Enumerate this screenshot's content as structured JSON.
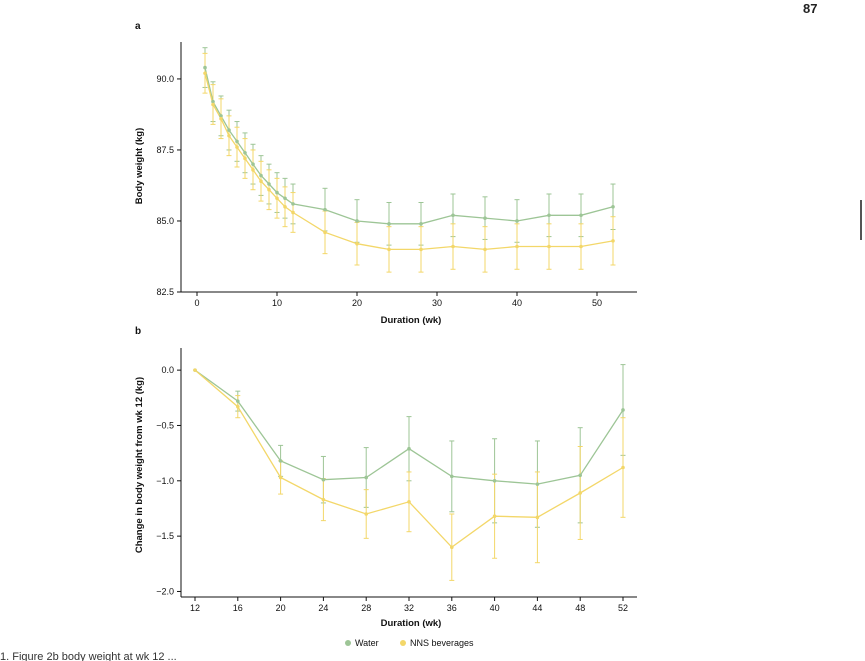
{
  "page": {
    "page_number": "87",
    "caption_fragment": "1. Figure 2b    body weight at wk 12 ..."
  },
  "colors": {
    "water": "#9dc596",
    "nns": "#f3d769",
    "axis": "#111111"
  },
  "legend": {
    "items": [
      {
        "label": "Water",
        "color": "#9dc596",
        "marker": "circle"
      },
      {
        "label": "NNS beverages",
        "color": "#f3d769",
        "marker": "circle"
      }
    ],
    "placement": "bottom-center"
  },
  "chart_data": [
    {
      "panel": "a",
      "type": "line",
      "xlabel": "Duration (wk)",
      "ylabel": "Body weight (kg)",
      "xlim": [
        -2,
        55
      ],
      "ylim": [
        82.5,
        91.3
      ],
      "xticks": [
        0,
        10,
        20,
        30,
        40,
        50
      ],
      "yticks": [
        82.5,
        85.0,
        87.5,
        90.0
      ],
      "ytick_labels": [
        "82.5",
        "85.0",
        "87.5",
        "90.0"
      ],
      "grid": false,
      "error_bars": true,
      "x": [
        1,
        2,
        3,
        4,
        5,
        6,
        7,
        8,
        9,
        10,
        11,
        12,
        16,
        20,
        24,
        28,
        32,
        36,
        40,
        44,
        48,
        52
      ],
      "series": [
        {
          "name": "Water",
          "color": "#9dc596",
          "values": [
            90.4,
            89.2,
            88.7,
            88.2,
            87.8,
            87.4,
            87.0,
            86.6,
            86.3,
            86.0,
            85.8,
            85.6,
            85.4,
            85.0,
            84.9,
            84.9,
            85.2,
            85.1,
            85.0,
            85.2,
            85.2,
            85.5
          ],
          "errors": [
            0.7,
            0.7,
            0.7,
            0.7,
            0.7,
            0.7,
            0.7,
            0.7,
            0.7,
            0.7,
            0.7,
            0.7,
            0.75,
            0.75,
            0.75,
            0.75,
            0.75,
            0.75,
            0.75,
            0.75,
            0.75,
            0.8
          ]
        },
        {
          "name": "NNS beverages",
          "color": "#f3d769",
          "values": [
            90.2,
            89.1,
            88.6,
            88.0,
            87.6,
            87.2,
            86.8,
            86.4,
            86.1,
            85.8,
            85.5,
            85.3,
            84.6,
            84.2,
            84.0,
            84.0,
            84.1,
            84.0,
            84.1,
            84.1,
            84.1,
            84.3
          ],
          "errors": [
            0.7,
            0.7,
            0.7,
            0.7,
            0.7,
            0.7,
            0.7,
            0.7,
            0.7,
            0.7,
            0.7,
            0.7,
            0.75,
            0.75,
            0.8,
            0.8,
            0.8,
            0.8,
            0.8,
            0.8,
            0.8,
            0.85
          ]
        }
      ]
    },
    {
      "panel": "b",
      "type": "line",
      "xlabel": "Duration (wk)",
      "ylabel": "Change in body weight from wk 12 (kg)",
      "xlim": [
        12,
        52
      ],
      "ylim": [
        -2.05,
        0.2
      ],
      "xticks": [
        12,
        16,
        20,
        24,
        28,
        32,
        36,
        40,
        44,
        48,
        52
      ],
      "yticks": [
        0.0,
        -0.5,
        -1.0,
        -1.5,
        -2.0
      ],
      "ytick_labels": [
        "0.0",
        "−0.5",
        "−1.0",
        "−1.5",
        "−2.0"
      ],
      "grid": false,
      "error_bars": true,
      "x": [
        12,
        16,
        20,
        24,
        28,
        32,
        36,
        40,
        44,
        48,
        52
      ],
      "series": [
        {
          "name": "Water",
          "color": "#9dc596",
          "values": [
            0.0,
            -0.28,
            -0.82,
            -0.99,
            -0.97,
            -0.71,
            -0.96,
            -1.0,
            -1.03,
            -0.95,
            -0.36
          ],
          "errors": [
            0.0,
            0.09,
            0.14,
            0.21,
            0.27,
            0.29,
            0.32,
            0.38,
            0.39,
            0.43,
            0.41
          ]
        },
        {
          "name": "NNS beverages",
          "color": "#f3d769",
          "values": [
            0.0,
            -0.33,
            -0.97,
            -1.17,
            -1.3,
            -1.19,
            -1.6,
            -1.32,
            -1.33,
            -1.11,
            -0.88
          ],
          "errors": [
            0.0,
            0.1,
            0.15,
            0.19,
            0.22,
            0.27,
            0.3,
            0.38,
            0.41,
            0.42,
            0.45
          ]
        }
      ]
    }
  ]
}
